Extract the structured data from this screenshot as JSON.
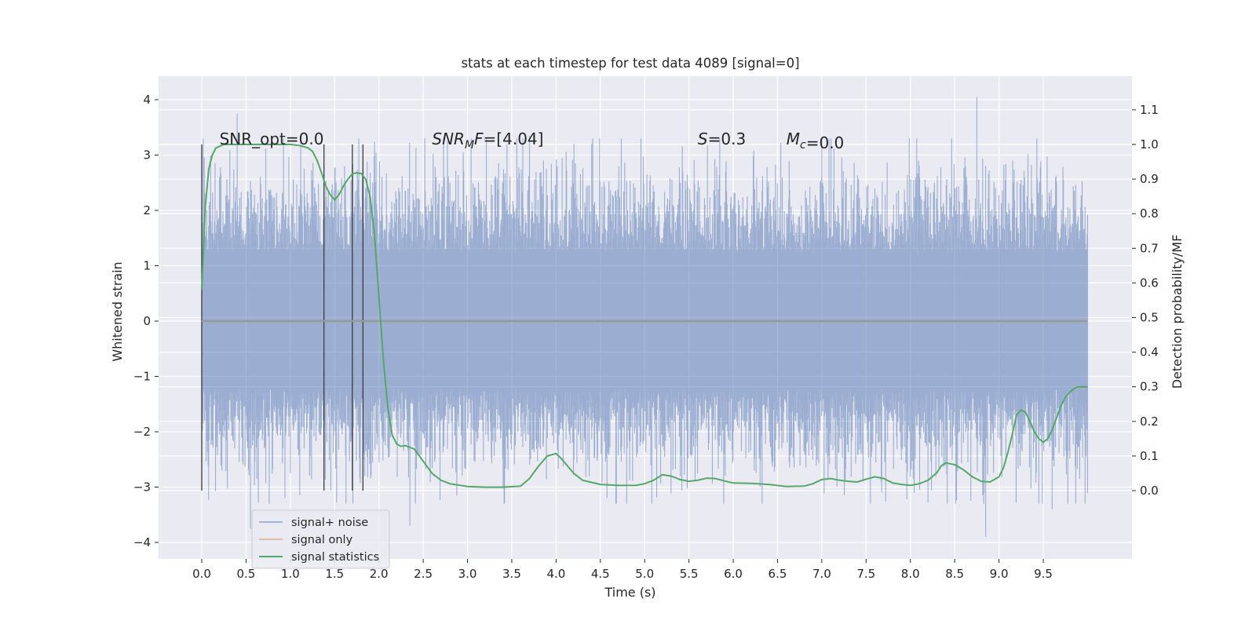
{
  "chart_data": {
    "type": "line",
    "title": "stats at each timestep for test data 4089 [signal=0]",
    "xlabel": "Time (s)",
    "ylabel": "Whitened strain",
    "ylabel_right": "Detection probability/MF",
    "xlim": [
      -0.5,
      10.5
    ],
    "ylim": [
      -4.3,
      4.4
    ],
    "ylim_right": [
      -0.15,
      1.19
    ],
    "x_ticks": [
      "0.0",
      "0.5",
      "1.0",
      "1.5",
      "2.0",
      "2.5",
      "3.0",
      "3.5",
      "4.0",
      "4.5",
      "5.0",
      "5.5",
      "6.0",
      "6.5",
      "7.0",
      "7.5",
      "8.0",
      "8.5",
      "9.0",
      "9.5"
    ],
    "y_ticks": [
      "4",
      "3",
      "2",
      "1",
      "0",
      "−1",
      "−2",
      "−3",
      "−4"
    ],
    "y_ticks_right": [
      "1.1",
      "1.0",
      "0.9",
      "0.8",
      "0.7",
      "0.6",
      "0.5",
      "0.4",
      "0.3",
      "0.2",
      "0.1",
      "0.0"
    ],
    "grid": true,
    "legend_placement": "lower-left",
    "annotations": [
      {
        "text": "SNR_opt=0.0",
        "x": 0.2
      },
      {
        "text": "SNR_MF=[4.04]",
        "x": 2.6
      },
      {
        "text": "S=0.3",
        "x": 5.6
      },
      {
        "text": "M_c=0.0",
        "x": 6.6
      }
    ],
    "vertical_markers": [
      0.0,
      1.38,
      1.7,
      1.82
    ],
    "series": [
      {
        "name": "signal+ noise",
        "color": "#4c72b0",
        "description_kind": "noise",
        "x_range": [
          0.0,
          10.0
        ],
        "envelope_quiet": 1.3,
        "spike_max": [
          4.05,
          -3.9
        ]
      },
      {
        "name": "signal only",
        "color": "#dd8452",
        "x_range": [
          0.0,
          10.0
        ],
        "values_constant": 0.0
      },
      {
        "name": "signal statistics",
        "color": "#55a868",
        "axis": "right",
        "x": [
          0.0,
          0.04,
          0.08,
          0.12,
          0.16,
          0.25,
          0.4,
          0.6,
          0.8,
          1.0,
          1.1,
          1.2,
          1.25,
          1.3,
          1.35,
          1.4,
          1.45,
          1.5,
          1.55,
          1.6,
          1.65,
          1.7,
          1.75,
          1.8,
          1.85,
          1.9,
          1.95,
          2.0,
          2.05,
          2.1,
          2.15,
          2.2,
          2.25,
          2.3,
          2.4,
          2.5,
          2.6,
          2.7,
          2.8,
          3.0,
          3.2,
          3.4,
          3.6,
          3.7,
          3.8,
          3.9,
          4.0,
          4.05,
          4.1,
          4.2,
          4.3,
          4.5,
          4.7,
          4.9,
          5.0,
          5.1,
          5.2,
          5.3,
          5.4,
          5.5,
          5.6,
          5.7,
          5.8,
          5.9,
          6.0,
          6.2,
          6.4,
          6.6,
          6.8,
          6.9,
          7.0,
          7.1,
          7.2,
          7.3,
          7.4,
          7.5,
          7.6,
          7.7,
          7.8,
          7.9,
          8.0,
          8.1,
          8.2,
          8.3,
          8.35,
          8.4,
          8.5,
          8.6,
          8.7,
          8.8,
          8.9,
          9.0,
          9.05,
          9.1,
          9.15,
          9.2,
          9.25,
          9.3,
          9.35,
          9.4,
          9.45,
          9.5,
          9.55,
          9.6,
          9.65,
          9.7,
          9.75,
          9.8,
          9.85,
          9.9,
          9.95,
          10.0
        ],
        "values": [
          0.58,
          0.82,
          0.93,
          0.97,
          0.99,
          1.0,
          1.0,
          1.0,
          1.0,
          1.0,
          0.997,
          0.99,
          0.98,
          0.955,
          0.92,
          0.88,
          0.855,
          0.84,
          0.855,
          0.88,
          0.9,
          0.915,
          0.918,
          0.916,
          0.9,
          0.85,
          0.74,
          0.56,
          0.38,
          0.24,
          0.16,
          0.135,
          0.128,
          0.13,
          0.12,
          0.085,
          0.05,
          0.03,
          0.02,
          0.012,
          0.01,
          0.01,
          0.013,
          0.035,
          0.07,
          0.1,
          0.107,
          0.095,
          0.08,
          0.05,
          0.03,
          0.018,
          0.015,
          0.015,
          0.02,
          0.03,
          0.046,
          0.042,
          0.032,
          0.027,
          0.03,
          0.036,
          0.035,
          0.028,
          0.022,
          0.021,
          0.018,
          0.012,
          0.013,
          0.02,
          0.032,
          0.035,
          0.03,
          0.027,
          0.025,
          0.033,
          0.04,
          0.035,
          0.022,
          0.018,
          0.015,
          0.02,
          0.03,
          0.052,
          0.072,
          0.08,
          0.075,
          0.06,
          0.04,
          0.027,
          0.025,
          0.04,
          0.065,
          0.11,
          0.162,
          0.22,
          0.233,
          0.226,
          0.2,
          0.17,
          0.15,
          0.14,
          0.15,
          0.175,
          0.21,
          0.245,
          0.27,
          0.285,
          0.295,
          0.3,
          0.3,
          0.3
        ]
      }
    ]
  }
}
